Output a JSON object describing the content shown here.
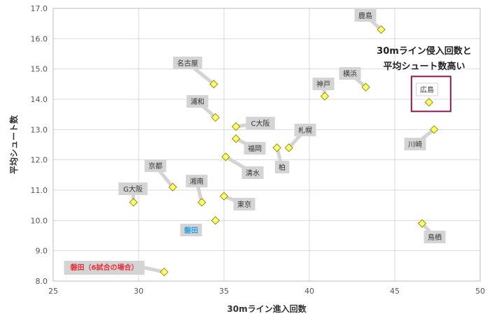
{
  "chart_data": {
    "type": "scatter",
    "xlabel": "30mライン進入回数",
    "ylabel": "平均シュート数",
    "xlim": [
      25,
      50
    ],
    "ylim": [
      8.0,
      17.0
    ],
    "x_ticks": [
      "25",
      "30",
      "35",
      "40",
      "45",
      "50"
    ],
    "y_ticks": [
      "8.0",
      "9.0",
      "10.0",
      "11.0",
      "12.0",
      "13.0",
      "14.0",
      "15.0",
      "16.0",
      "17.0"
    ],
    "grid": true,
    "marker_color": "#ffff66",
    "highlight_color": "#8a1c4a",
    "points": [
      {
        "label": "鹿島",
        "x": 44.2,
        "y": 16.3
      },
      {
        "label": "名古屋",
        "x": 34.4,
        "y": 14.5
      },
      {
        "label": "横浜",
        "x": 43.3,
        "y": 14.4
      },
      {
        "label": "神戸",
        "x": 40.9,
        "y": 14.1
      },
      {
        "label": "広島",
        "x": 47.0,
        "y": 13.9
      },
      {
        "label": "浦和",
        "x": 34.5,
        "y": 13.4
      },
      {
        "label": "C大阪",
        "x": 35.7,
        "y": 13.1
      },
      {
        "label": "川崎",
        "x": 47.3,
        "y": 13.0
      },
      {
        "label": "福岡",
        "x": 35.7,
        "y": 12.7
      },
      {
        "label": "札幌",
        "x": 38.8,
        "y": 12.4
      },
      {
        "label": "柏",
        "x": 38.1,
        "y": 12.4
      },
      {
        "label": "清水",
        "x": 35.1,
        "y": 12.1
      },
      {
        "label": "京都",
        "x": 32.0,
        "y": 11.1
      },
      {
        "label": "湘南",
        "x": 33.7,
        "y": 10.6
      },
      {
        "label": "G大阪",
        "x": 29.7,
        "y": 10.6
      },
      {
        "label": "東京",
        "x": 35.0,
        "y": 10.8
      },
      {
        "label": "磐田",
        "x": 34.5,
        "y": 10.0
      },
      {
        "label": "鳥栖",
        "x": 46.6,
        "y": 9.9
      },
      {
        "label": "磐田（6試合の場合）",
        "x": 31.5,
        "y": 8.3
      }
    ],
    "annotation": {
      "line1": "30mライン侵入回数と",
      "line2": "平均シュート数高い"
    }
  }
}
